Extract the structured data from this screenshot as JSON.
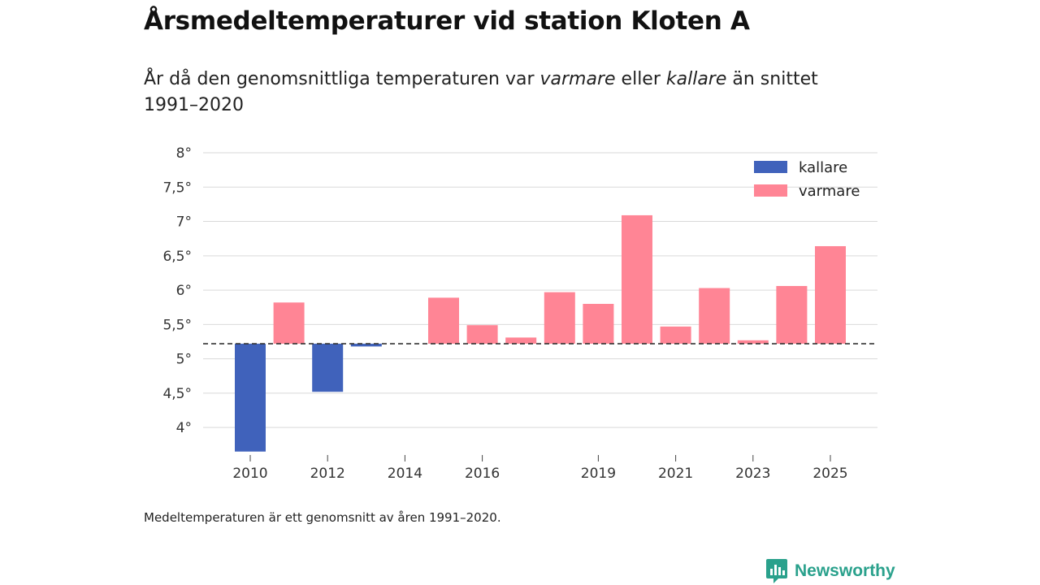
{
  "header": {
    "title": "Årsmedeltemperaturer vid station Kloten A",
    "subtitle_pre": "År då den genomsnittliga temperaturen var ",
    "subtitle_em1": "varmare",
    "subtitle_mid": " eller ",
    "subtitle_em2": "kallare",
    "subtitle_post": " än snittet 1991–2020"
  },
  "footer": {
    "note": "Medeltemperaturen är ett genomsnitt av åren 1991–2020.",
    "brand": "Newsworthy",
    "brand_color": "#2aa18c"
  },
  "chart_data": {
    "type": "bar",
    "baseline": 5.22,
    "baseline_style": "dashed",
    "ylim": [
      3.6,
      8.0
    ],
    "yticks": [
      4,
      4.5,
      5,
      5.5,
      6,
      6.5,
      7,
      7.5,
      8
    ],
    "ytick_labels": [
      "4°",
      "4,5°",
      "5°",
      "5,5°",
      "6°",
      "6,5°",
      "7°",
      "7,5°",
      "8°"
    ],
    "xticks": [
      2010,
      2012,
      2014,
      2016,
      2019,
      2021,
      2023,
      2025
    ],
    "xtick_labels": [
      "2010",
      "2012",
      "2014",
      "2016",
      "2019",
      "2021",
      "2023",
      "2025"
    ],
    "xlim": [
      2009,
      2025.5
    ],
    "legend": [
      {
        "key": "kallare",
        "label": "kallare",
        "color": "#4062bb"
      },
      {
        "key": "varmare",
        "label": "varmare",
        "color": "#ff8595"
      }
    ],
    "legend_position": "top-right",
    "series": [
      {
        "year": 2010,
        "value": 3.65,
        "category": "kallare"
      },
      {
        "year": 2011,
        "value": 5.82,
        "category": "varmare"
      },
      {
        "year": 2012,
        "value": 4.52,
        "category": "kallare"
      },
      {
        "year": 2013,
        "value": 5.18,
        "category": "kallare"
      },
      {
        "year": 2015,
        "value": 5.89,
        "category": "varmare"
      },
      {
        "year": 2016,
        "value": 5.49,
        "category": "varmare"
      },
      {
        "year": 2017,
        "value": 5.31,
        "category": "varmare"
      },
      {
        "year": 2018,
        "value": 5.97,
        "category": "varmare"
      },
      {
        "year": 2019,
        "value": 5.8,
        "category": "varmare"
      },
      {
        "year": 2020,
        "value": 7.09,
        "category": "varmare"
      },
      {
        "year": 2021,
        "value": 5.47,
        "category": "varmare"
      },
      {
        "year": 2022,
        "value": 6.03,
        "category": "varmare"
      },
      {
        "year": 2023,
        "value": 5.27,
        "category": "varmare"
      },
      {
        "year": 2024,
        "value": 6.06,
        "category": "varmare"
      },
      {
        "year": 2025,
        "value": 6.64,
        "category": "varmare"
      }
    ]
  }
}
